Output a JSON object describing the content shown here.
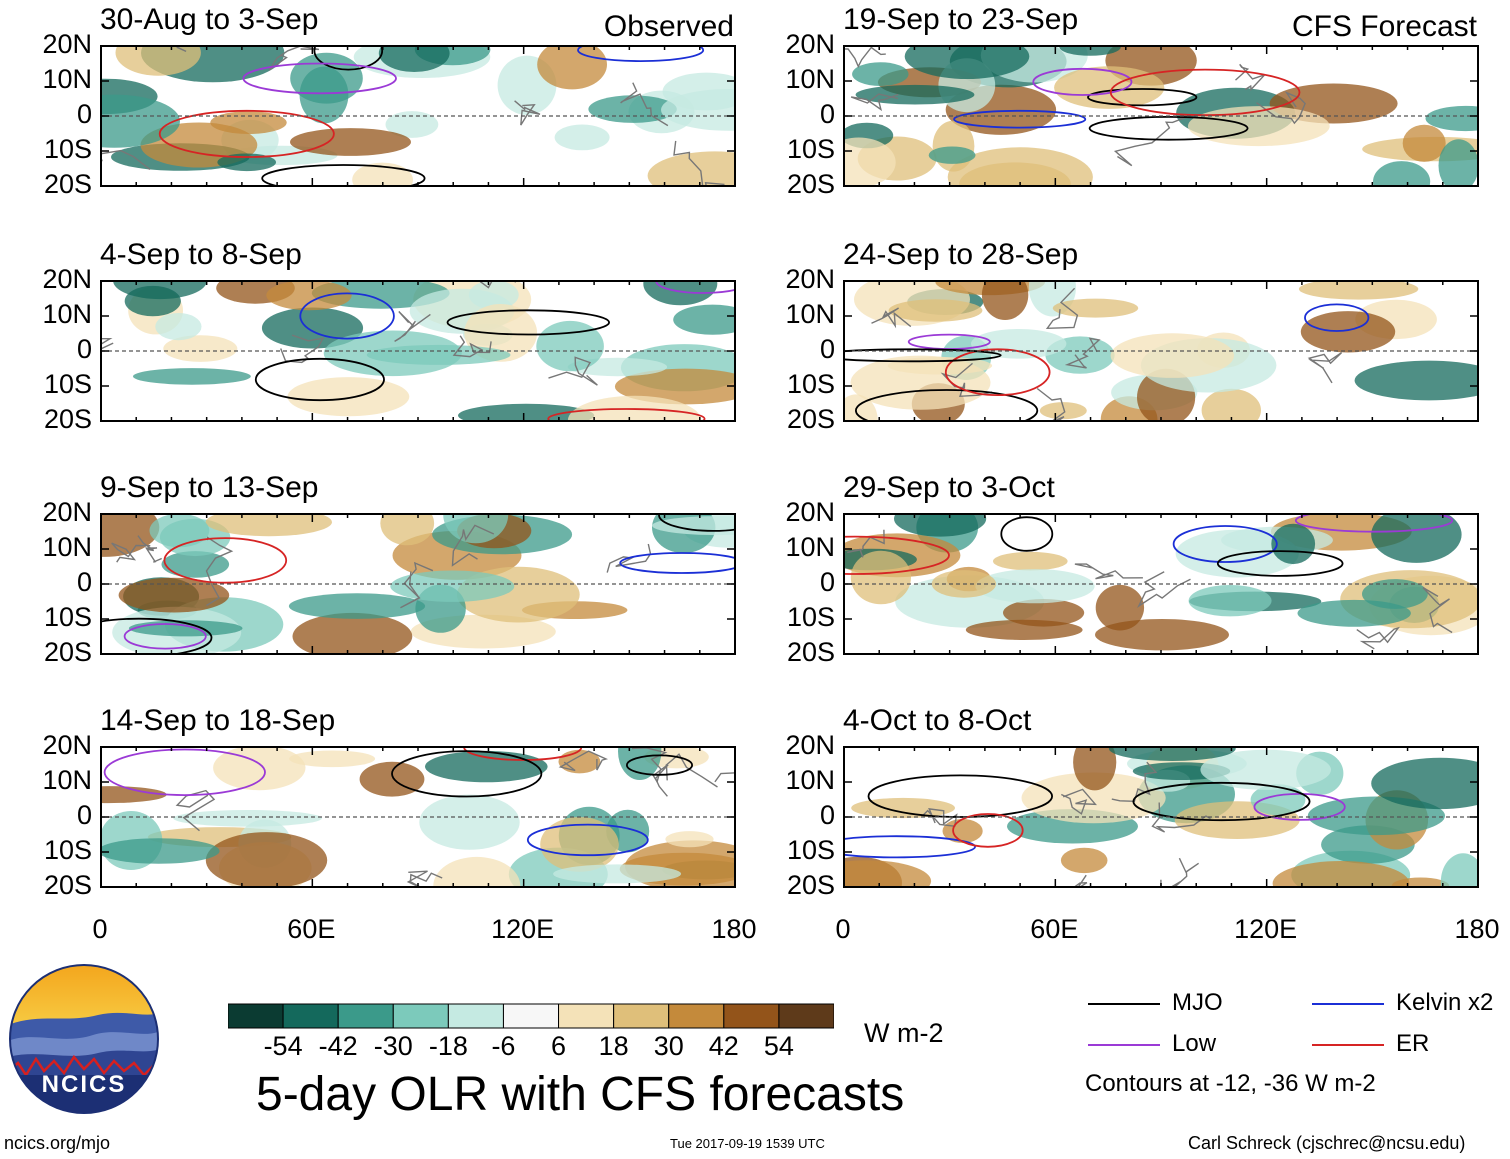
{
  "chart_data": {
    "type": "heatmap",
    "title": "5-day OLR with CFS forecasts",
    "units": "W m-2",
    "lat_ticks": [
      "20N",
      "10N",
      "0",
      "10S",
      "20S"
    ],
    "lon_ticks": [
      "0",
      "60E",
      "120E",
      "180"
    ],
    "panels": [
      {
        "title": "30-Aug to 3-Sep",
        "tag": "Observed"
      },
      {
        "title": "4-Sep to 8-Sep",
        "tag": ""
      },
      {
        "title": "9-Sep to 13-Sep",
        "tag": ""
      },
      {
        "title": "14-Sep to 18-Sep",
        "tag": ""
      },
      {
        "title": "19-Sep to 23-Sep",
        "tag": "CFS Forecast"
      },
      {
        "title": "24-Sep to 28-Sep",
        "tag": ""
      },
      {
        "title": "29-Sep to 3-Oct",
        "tag": ""
      },
      {
        "title": "4-Oct to 8-Oct",
        "tag": ""
      }
    ],
    "colorbar": {
      "colors": [
        "#0b3b32",
        "#14695c",
        "#3b9a8a",
        "#7ccabb",
        "#c5eae2",
        "#f7f7f7",
        "#f4e2b8",
        "#dfbf7a",
        "#c48a3b",
        "#93541a",
        "#5e3a1a"
      ],
      "labels": [
        "-54",
        "-42",
        "-30",
        "-18",
        "-6",
        "6",
        "18",
        "30",
        "42",
        "54"
      ]
    },
    "legend": {
      "items": [
        {
          "label": "MJO",
          "color": "#000000"
        },
        {
          "label": "Kelvin x2",
          "color": "#1b2fd6"
        },
        {
          "label": "Low",
          "color": "#9b3ad6"
        },
        {
          "label": "ER",
          "color": "#d62424"
        }
      ],
      "note": "Contours at -12, -36 W m-2"
    }
  },
  "footer": {
    "left": "ncics.org/mjo",
    "center": "Tue 2017-09-19 1539 UTC",
    "right": "Carl Schreck (cjschrec@ncsu.edu)"
  },
  "logo": {
    "text": "NCICS"
  }
}
